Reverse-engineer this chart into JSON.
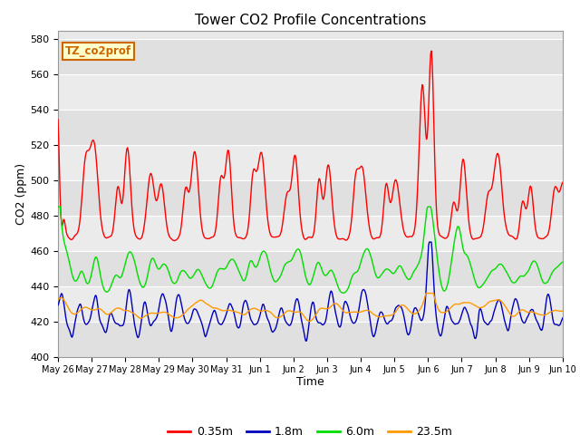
{
  "title": "Tower CO2 Profile Concentrations",
  "xlabel": "Time",
  "ylabel": "CO2 (ppm)",
  "ylim": [
    400,
    585
  ],
  "yticks": [
    400,
    420,
    440,
    460,
    480,
    500,
    520,
    540,
    560,
    580
  ],
  "legend_label": "TZ_co2prof",
  "series_labels": [
    "0.35m",
    "1.8m",
    "6.0m",
    "23.5m"
  ],
  "series_colors": [
    "#ff0000",
    "#0000bb",
    "#00dd00",
    "#ff9900"
  ],
  "fig_bg_color": "#ffffff",
  "plot_bg_color": "#e8e8e8",
  "band_colors": [
    "#e0e0e0",
    "#ebebeb"
  ],
  "grid_color": "#ffffff",
  "xtick_labels": [
    "May 26",
    "May 27",
    "May 28",
    "May 29",
    "May 30",
    "May 31",
    "Jun 1",
    "Jun 2",
    "Jun 3",
    "Jun 4",
    "Jun 5",
    "Jun 6",
    "Jun 7",
    "Jun 8",
    "Jun 9",
    "Jun 10"
  ],
  "n_points": 720,
  "n_days": 15
}
